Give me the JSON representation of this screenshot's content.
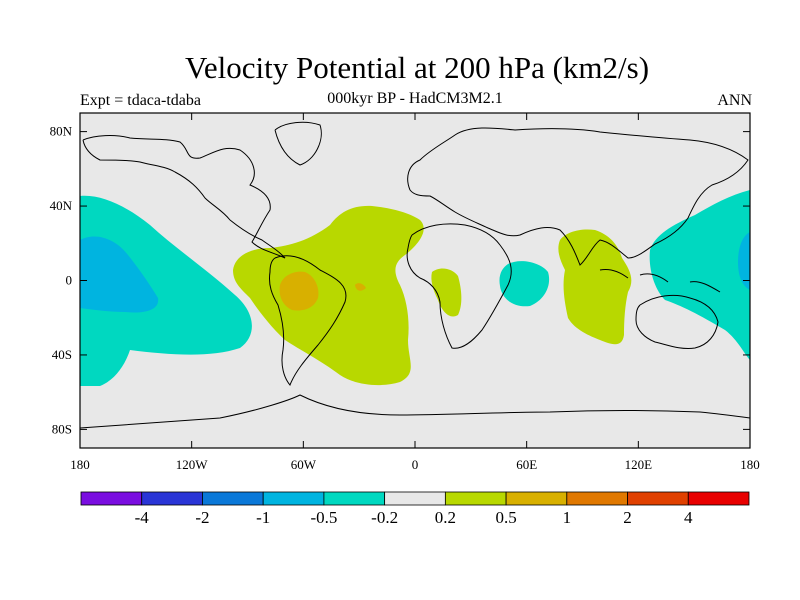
{
  "header": {
    "title": "Velocity Potential at 200 hPa (km2/s)",
    "experiment": "Expt = tdaca-tdaba",
    "subtitle": "000kyr BP - HadCM3M2.1",
    "season": "ANN"
  },
  "map": {
    "projection": "cylindrical-equidistant",
    "lon_range": [
      -180,
      180
    ],
    "lat_range": [
      -90,
      90
    ],
    "lon_ticks": [
      {
        "value": -180,
        "label": "180"
      },
      {
        "value": -120,
        "label": "120W"
      },
      {
        "value": -60,
        "label": "60W"
      },
      {
        "value": 0,
        "label": "0"
      },
      {
        "value": 60,
        "label": "60E"
      },
      {
        "value": 120,
        "label": "120E"
      },
      {
        "value": 180,
        "label": "180"
      }
    ],
    "lat_ticks": [
      {
        "value": 80,
        "label": "80N"
      },
      {
        "value": 40,
        "label": "40N"
      },
      {
        "value": 0,
        "label": "0"
      },
      {
        "value": -40,
        "label": "40S"
      },
      {
        "value": -80,
        "label": "80S"
      }
    ],
    "background_color": "#e8e8e8"
  },
  "colorbar": {
    "colors": [
      "#7a0ee0",
      "#2a35d6",
      "#0a78d8",
      "#00b4e0",
      "#00d8c0",
      "#e8e8e8",
      "#b8d800",
      "#d8b000",
      "#e07800",
      "#e04000",
      "#e80000"
    ],
    "labels": [
      "-4",
      "-2",
      "-1",
      "-0.5",
      "-0.2",
      "0.2",
      "0.5",
      "1",
      "2",
      "4"
    ]
  }
}
